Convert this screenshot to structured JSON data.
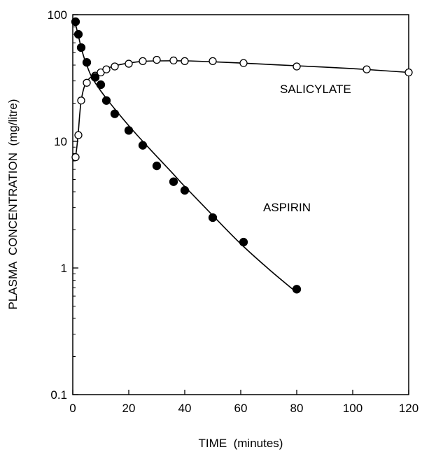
{
  "chart_data": {
    "type": "scatter",
    "title": "",
    "xlabel": "TIME  (minutes)",
    "ylabel": "PLASMA  CONCENTRATION  (mg/litre)",
    "xlim": [
      0,
      120
    ],
    "ylim": [
      0.1,
      100
    ],
    "yscale": "log",
    "grid": false,
    "x_ticks": [
      0,
      20,
      40,
      60,
      80,
      100,
      120
    ],
    "x_tick_labels": [
      "0",
      "20",
      "40",
      "60",
      "80",
      "100",
      "120"
    ],
    "y_ticks": [
      0.1,
      1,
      10,
      100
    ],
    "y_tick_labels": [
      "0.1",
      "1",
      "10",
      "100"
    ],
    "series": [
      {
        "name": "ASPIRIN",
        "marker": "filled-circle",
        "color": "#000000",
        "x": [
          1,
          2,
          3,
          5,
          8,
          10,
          12,
          15,
          20,
          25,
          30,
          36,
          40,
          50,
          61,
          80
        ],
        "y": [
          88,
          70,
          55,
          42,
          32,
          28,
          21,
          16.5,
          12.2,
          9.3,
          6.4,
          4.8,
          4.1,
          2.5,
          1.6,
          0.68
        ],
        "curve_x": [
          1,
          2,
          3,
          4,
          5,
          6,
          7,
          8,
          10,
          12,
          15,
          20,
          25,
          30,
          35,
          40,
          50,
          60,
          70,
          80
        ],
        "curve_y": [
          84,
          68,
          55,
          46,
          40,
          35,
          31.5,
          29,
          25,
          21.8,
          18,
          13.3,
          10,
          7.6,
          5.8,
          4.4,
          2.6,
          1.55,
          0.98,
          0.64
        ]
      },
      {
        "name": "SALICYLATE",
        "marker": "open-circle",
        "color": "#000000",
        "x": [
          1,
          2,
          3,
          5,
          8,
          10,
          12,
          15,
          20,
          25,
          30,
          36,
          40,
          50,
          61,
          80,
          105,
          120
        ],
        "y": [
          7.5,
          11.2,
          21,
          29,
          33,
          35,
          37,
          39,
          41,
          43,
          44,
          43.5,
          43,
          43,
          41.5,
          39,
          37,
          35
        ],
        "curve_x": [
          1,
          1.5,
          2,
          2.5,
          3,
          4,
          5,
          6,
          8,
          10,
          12,
          15,
          20,
          25,
          30,
          40,
          50,
          60,
          80,
          100,
          120
        ],
        "curve_y": [
          7.5,
          9.2,
          12,
          16.5,
          21,
          26.5,
          29.5,
          31.5,
          34,
          36,
          37.5,
          39.5,
          41.5,
          42.8,
          43.2,
          43.2,
          42.5,
          41.5,
          39.5,
          37.5,
          35
        ]
      }
    ],
    "annotations": [
      {
        "text": "SALICYLATE",
        "x": 74,
        "y": 24
      },
      {
        "text": "ASPIRIN",
        "x": 68,
        "y": 2.8
      }
    ]
  }
}
